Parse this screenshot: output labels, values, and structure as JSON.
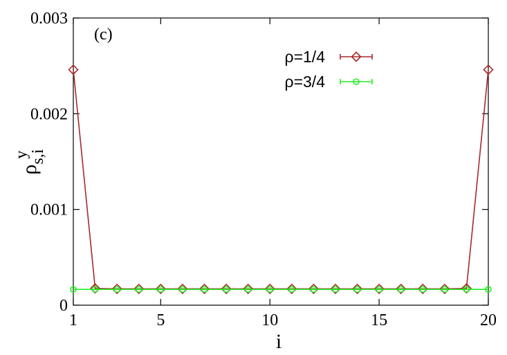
{
  "chart_data": {
    "type": "line",
    "title": "",
    "panel_label": "(c)",
    "xlabel": "i",
    "ylabel": {
      "base": "ρ",
      "subscript": "s,i",
      "superscript": "y"
    },
    "xlim": [
      1,
      20
    ],
    "ylim": [
      0,
      0.003
    ],
    "x_ticks": [
      {
        "value": 1,
        "label": "1"
      },
      {
        "value": 5,
        "label": "5"
      },
      {
        "value": 10,
        "label": "10"
      },
      {
        "value": 15,
        "label": "15"
      },
      {
        "value": 20,
        "label": "20"
      }
    ],
    "y_ticks": [
      {
        "value": 0,
        "label": "0"
      },
      {
        "value": 0.001,
        "label": "0.001"
      },
      {
        "value": 0.002,
        "label": "0.002"
      },
      {
        "value": 0.003,
        "label": "0.003"
      }
    ],
    "grid": false,
    "legend_position": "top-right",
    "series": [
      {
        "name": "ρ=1/4",
        "color": "#a52a2a",
        "marker": "diamond",
        "x": [
          1,
          2,
          3,
          4,
          5,
          6,
          7,
          8,
          9,
          10,
          11,
          12,
          13,
          14,
          15,
          16,
          17,
          18,
          19,
          20
        ],
        "y": [
          0.00246,
          0.000175,
          0.00017,
          0.00017,
          0.00017,
          0.00017,
          0.00017,
          0.00017,
          0.00017,
          0.00017,
          0.00017,
          0.00017,
          0.00017,
          0.00017,
          0.00017,
          0.00017,
          0.00017,
          0.00017,
          0.000175,
          0.00246
        ]
      },
      {
        "name": "ρ=3/4",
        "color": "#22ee22",
        "marker": "circle",
        "x": [
          1,
          2,
          3,
          4,
          5,
          6,
          7,
          8,
          9,
          10,
          11,
          12,
          13,
          14,
          15,
          16,
          17,
          18,
          19,
          20
        ],
        "y": [
          0.000165,
          0.000165,
          0.000165,
          0.000165,
          0.000165,
          0.000165,
          0.000165,
          0.000165,
          0.000165,
          0.000165,
          0.000165,
          0.000165,
          0.000165,
          0.000165,
          0.000165,
          0.000165,
          0.000165,
          0.000165,
          0.000165,
          0.000165
        ]
      }
    ]
  }
}
